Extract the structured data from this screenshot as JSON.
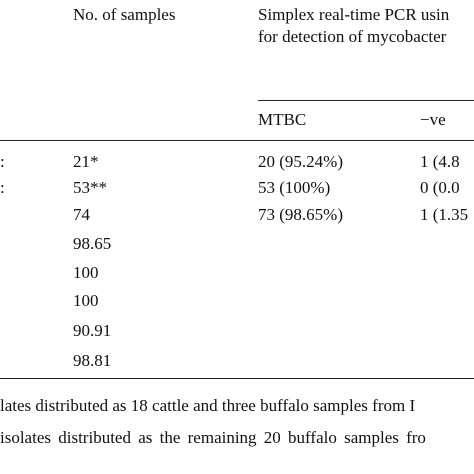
{
  "table": {
    "header": {
      "samples": "No. of samples",
      "pcr": [
        "Simplex real-time PCR usin",
        "for detection of mycobacter"
      ]
    },
    "subheader": [
      "MTBC",
      "−ve"
    ],
    "rows": [
      [
        ":",
        "21*",
        "20 (95.24%)",
        "1 (4.8"
      ],
      [
        ":",
        "53**",
        "53 (100%)",
        "0 (0.0"
      ],
      [
        "74",
        "73 (98.65%)",
        "1 (1.35"
      ],
      [
        "98.65"
      ],
      [
        "100"
      ],
      [
        "100"
      ],
      [
        "90.91"
      ],
      [
        "98.81"
      ]
    ]
  },
  "footnotes": [
    "lates distributed as 18 cattle and three buffalo samples from I",
    "isolates distributed as the remaining 20 buffalo samples fro"
  ]
}
